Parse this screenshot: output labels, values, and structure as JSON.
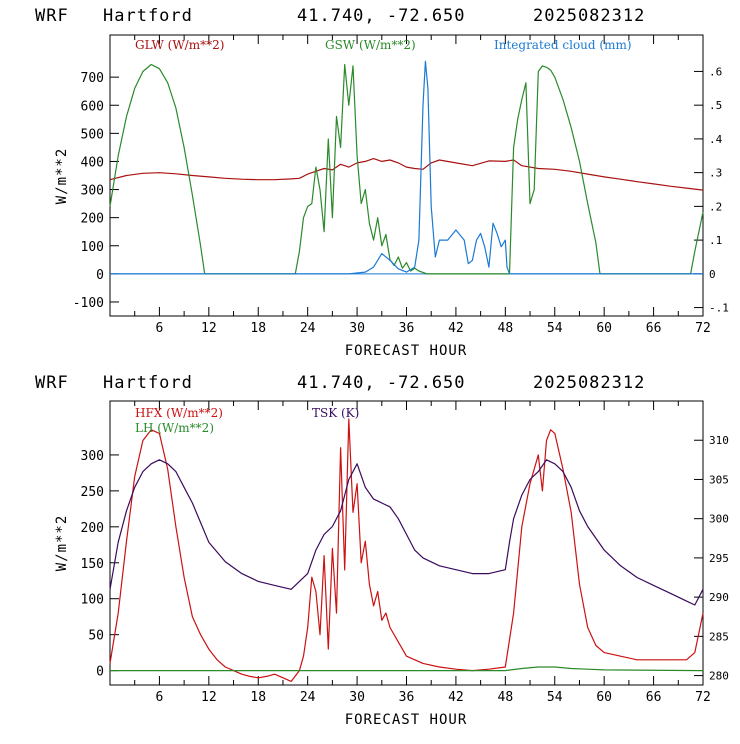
{
  "header": {
    "model": "WRF",
    "location": "Hartford",
    "coords": "41.740, -72.650",
    "init": "2025082312"
  },
  "chart_data": [
    {
      "type": "line",
      "xlabel": "FORECAST HOUR",
      "ylabel": "W/m**2",
      "xlim": [
        0,
        72
      ],
      "ylim": [
        -150,
        850
      ],
      "y2lim": [
        -0.125,
        0.708
      ],
      "x_ticks": [
        6,
        12,
        18,
        24,
        30,
        36,
        42,
        48,
        54,
        60,
        66,
        72
      ],
      "y_ticks": [
        -100,
        0,
        100,
        200,
        300,
        400,
        500,
        600,
        700
      ],
      "y2_ticks": [
        -0.1,
        0,
        0.1,
        0.2,
        0.3,
        0.4,
        0.5,
        0.6
      ],
      "y2_tick_labels": [
        "-.1",
        "0",
        ".1",
        ".2",
        ".3",
        ".4",
        ".5",
        ".6"
      ],
      "series": [
        {
          "name": "GLW (W/m**2)",
          "color": "#aa1111",
          "axis": "left",
          "x": [
            0,
            2,
            4,
            6,
            8,
            10,
            12,
            14,
            16,
            18,
            20,
            22,
            23,
            24,
            25,
            26,
            27,
            28,
            29,
            30,
            31,
            32,
            33,
            34,
            35,
            36,
            37,
            38,
            39,
            40,
            42,
            44,
            46,
            48,
            49,
            50,
            52,
            54,
            56,
            58,
            60,
            62,
            64,
            66,
            68,
            70,
            72
          ],
          "y": [
            335,
            350,
            358,
            360,
            356,
            350,
            345,
            340,
            337,
            335,
            335,
            338,
            340,
            355,
            365,
            375,
            370,
            390,
            380,
            395,
            400,
            410,
            400,
            405,
            395,
            380,
            375,
            372,
            395,
            405,
            395,
            385,
            402,
            400,
            405,
            385,
            375,
            372,
            365,
            355,
            345,
            337,
            328,
            320,
            312,
            305,
            298
          ]
        },
        {
          "name": "GSW (W/m**2)",
          "color": "#2a8a2a",
          "axis": "left",
          "x": [
            0,
            1,
            2,
            3,
            4,
            5,
            6,
            7,
            8,
            9,
            10,
            11,
            11.5,
            22.5,
            23,
            23.5,
            24,
            24.5,
            25,
            25.5,
            26,
            26.5,
            27,
            27.5,
            28,
            28.5,
            29,
            29.5,
            30,
            30.5,
            31,
            31.5,
            32,
            32.5,
            33,
            33.5,
            34,
            34.5,
            35,
            35.5,
            36,
            36.5,
            37,
            37.5,
            38,
            38.5,
            48.5,
            49,
            49.5,
            50,
            50.5,
            51,
            51.5,
            52,
            52.5,
            53,
            53.5,
            54,
            55,
            56,
            57,
            58,
            59,
            59.5,
            70.5,
            71,
            72
          ],
          "y": [
            240,
            420,
            560,
            660,
            720,
            745,
            730,
            680,
            590,
            450,
            280,
            100,
            0,
            0,
            80,
            200,
            240,
            250,
            380,
            300,
            150,
            480,
            200,
            560,
            450,
            745,
            600,
            740,
            420,
            250,
            300,
            180,
            120,
            200,
            100,
            140,
            50,
            30,
            60,
            20,
            40,
            10,
            20,
            10,
            5,
            0,
            0,
            450,
            550,
            620,
            680,
            250,
            300,
            720,
            740,
            735,
            725,
            700,
            620,
            520,
            400,
            250,
            110,
            0,
            0,
            80,
            220
          ]
        },
        {
          "name": "Integrated cloud (mm)",
          "color": "#1a7ad4",
          "axis": "right",
          "x": [
            0,
            29,
            31,
            32,
            33,
            34,
            35,
            36,
            37,
            37.5,
            38,
            38.3,
            38.6,
            39,
            39.5,
            40,
            41,
            42,
            43,
            43.5,
            44,
            44.5,
            45,
            45.5,
            46,
            46.5,
            47,
            47.5,
            48,
            48.2,
            48.5,
            72
          ],
          "y": [
            0,
            0,
            0.005,
            0.02,
            0.06,
            0.04,
            0.015,
            0.005,
            0.02,
            0.1,
            0.5,
            0.63,
            0.55,
            0.2,
            0.05,
            0.1,
            0.1,
            0.13,
            0.1,
            0.03,
            0.04,
            0.1,
            0.12,
            0.08,
            0.02,
            0.15,
            0.12,
            0.08,
            0.1,
            0.02,
            0,
            0
          ]
        }
      ]
    },
    {
      "type": "line",
      "xlabel": "FORECAST HOUR",
      "ylabel": "W/m**2",
      "xlim": [
        0,
        72
      ],
      "ylim": [
        -20,
        375
      ],
      "y2lim": [
        278.8,
        315
      ],
      "x_ticks": [
        6,
        12,
        18,
        24,
        30,
        36,
        42,
        48,
        54,
        60,
        66,
        72
      ],
      "y_ticks": [
        0,
        50,
        100,
        150,
        200,
        250,
        300
      ],
      "y2_ticks": [
        280,
        285,
        290,
        295,
        300,
        305,
        310
      ],
      "series": [
        {
          "name": "HFX (W/m**2)",
          "color": "#cc1111",
          "axis": "left",
          "x": [
            0,
            1,
            2,
            3,
            4,
            5,
            6,
            7,
            8,
            9,
            10,
            11,
            12,
            13,
            14,
            15,
            16,
            17,
            18,
            19,
            20,
            21,
            22,
            23,
            23.5,
            24,
            24.5,
            25,
            25.5,
            26,
            26.5,
            27,
            27.5,
            28,
            28.5,
            29,
            29.5,
            30,
            30.5,
            31,
            31.5,
            32,
            32.5,
            33,
            33.5,
            34,
            35,
            36,
            38,
            40,
            42,
            44,
            46,
            48,
            49,
            50,
            51,
            52,
            52.5,
            53,
            53.5,
            54,
            55,
            56,
            57,
            58,
            59,
            60,
            62,
            64,
            66,
            68,
            70,
            71,
            72
          ],
          "y": [
            10,
            80,
            180,
            270,
            320,
            335,
            330,
            280,
            200,
            130,
            75,
            50,
            30,
            15,
            5,
            0,
            -5,
            -8,
            -10,
            -8,
            -5,
            -10,
            -15,
            0,
            20,
            60,
            130,
            110,
            50,
            160,
            30,
            170,
            80,
            310,
            140,
            350,
            220,
            260,
            150,
            180,
            120,
            90,
            110,
            70,
            80,
            60,
            40,
            20,
            10,
            5,
            2,
            0,
            2,
            5,
            80,
            200,
            260,
            300,
            250,
            320,
            335,
            330,
            280,
            220,
            120,
            60,
            35,
            25,
            20,
            15,
            15,
            15,
            15,
            25,
            80
          ]
        },
        {
          "name": "LH (W/m**2)",
          "color": "#2a8a2a",
          "axis": "left",
          "x": [
            0,
            48,
            50,
            52,
            54,
            56,
            58,
            60,
            72
          ],
          "y": [
            0,
            0,
            3,
            5,
            5,
            3,
            2,
            1,
            0
          ]
        },
        {
          "name": "TSK (K)",
          "color": "#3a0a5e",
          "axis": "right",
          "x": [
            0,
            1,
            2,
            3,
            4,
            5,
            6,
            7,
            8,
            9,
            10,
            11,
            12,
            14,
            16,
            18,
            20,
            22,
            23,
            24,
            25,
            26,
            27,
            28,
            29,
            30,
            31,
            32,
            33,
            34,
            35,
            36,
            37,
            38,
            40,
            42,
            44,
            46,
            48,
            48.5,
            49,
            50,
            51,
            52,
            53,
            54,
            55,
            56,
            57,
            58,
            60,
            62,
            64,
            66,
            68,
            70,
            71,
            72
          ],
          "y": [
            291,
            297,
            301,
            304,
            306,
            307,
            307.5,
            307,
            306,
            304,
            302,
            299.5,
            297,
            294.5,
            293,
            292,
            291.5,
            291,
            292,
            293,
            296,
            298,
            299,
            301,
            305,
            307,
            304,
            302.5,
            302,
            301.5,
            300,
            298,
            296,
            295,
            294,
            293.5,
            293,
            293,
            293.5,
            297,
            300,
            303,
            305,
            306,
            307.5,
            307,
            306,
            304,
            301,
            299,
            296,
            294,
            292.5,
            291.5,
            290.5,
            289.5,
            289,
            291
          ]
        }
      ]
    }
  ]
}
